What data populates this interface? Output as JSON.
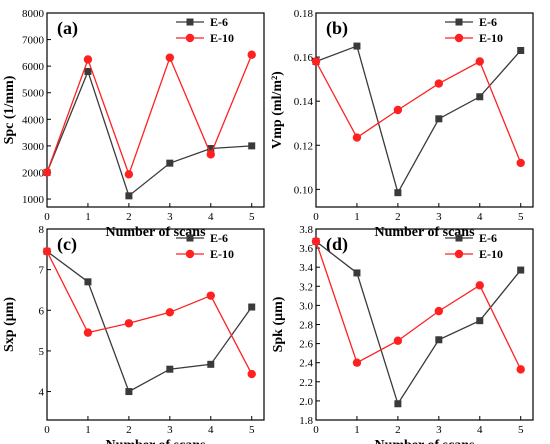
{
  "colors": {
    "E-6": "#3a3a3a",
    "E-10": "#ff2020"
  },
  "chart_data": [
    {
      "type": "line",
      "panel": "(a)",
      "xlabel": "Number of scans",
      "ylabel": "Spc (1/mm)",
      "x": [
        0,
        1,
        2,
        3,
        4,
        5
      ],
      "xlim": [
        0,
        5.3
      ],
      "ylim": [
        700,
        8000
      ],
      "xticks": [
        0,
        1,
        2,
        3,
        4,
        5
      ],
      "yticks": [
        1000,
        2000,
        3000,
        4000,
        5000,
        6000,
        7000,
        8000
      ],
      "yticklabels": [
        "1000",
        "2000",
        "3000",
        "4000",
        "5000",
        "6000",
        "7000",
        "8000"
      ],
      "legend_position": "top-right",
      "series": [
        {
          "name": "E-6",
          "marker": "square",
          "values": [
            2000,
            5800,
            1120,
            2350,
            2900,
            3000
          ]
        },
        {
          "name": "E-10",
          "marker": "circle",
          "values": [
            2000,
            6250,
            1930,
            6320,
            2680,
            6430
          ]
        }
      ]
    },
    {
      "type": "line",
      "panel": "(b)",
      "xlabel": "Number of scans",
      "ylabel": "Vmp (ml/m²)",
      "x": [
        0,
        1,
        2,
        3,
        4,
        5
      ],
      "xlim": [
        0,
        5.3
      ],
      "ylim": [
        0.092,
        0.18
      ],
      "xticks": [
        0,
        1,
        2,
        3,
        4,
        5
      ],
      "yticks": [
        0.1,
        0.12,
        0.14,
        0.16,
        0.18
      ],
      "yticklabels": [
        "0.10",
        "0.12",
        "0.14",
        "0.16",
        "0.18"
      ],
      "legend_position": "top-right",
      "series": [
        {
          "name": "E-6",
          "marker": "square",
          "values": [
            0.158,
            0.165,
            0.0985,
            0.132,
            0.142,
            0.163
          ]
        },
        {
          "name": "E-10",
          "marker": "circle",
          "values": [
            0.158,
            0.1235,
            0.136,
            0.148,
            0.158,
            0.112
          ]
        }
      ]
    },
    {
      "type": "line",
      "panel": "(c)",
      "xlabel": "Number of scans",
      "ylabel": "Sxp (μm)",
      "x": [
        0,
        1,
        2,
        3,
        4,
        5
      ],
      "xlim": [
        0,
        5.3
      ],
      "ylim": [
        3.3,
        8
      ],
      "xticks": [
        0,
        1,
        2,
        3,
        4,
        5
      ],
      "yticks": [
        4,
        5,
        6,
        7,
        8
      ],
      "yticklabels": [
        "4",
        "5",
        "6",
        "7",
        "8"
      ],
      "legend_position": "top-right",
      "series": [
        {
          "name": "E-6",
          "marker": "square",
          "values": [
            7.45,
            6.7,
            4.0,
            4.55,
            4.67,
            6.08
          ]
        },
        {
          "name": "E-10",
          "marker": "circle",
          "values": [
            7.45,
            5.45,
            5.68,
            5.95,
            6.36,
            4.43
          ]
        }
      ]
    },
    {
      "type": "line",
      "panel": "(d)",
      "xlabel": "Number of scans",
      "ylabel": "Spk (μm)",
      "x": [
        0,
        1,
        2,
        3,
        4,
        5
      ],
      "xlim": [
        0,
        5.3
      ],
      "ylim": [
        1.8,
        3.8
      ],
      "xticks": [
        0,
        1,
        2,
        3,
        4,
        5
      ],
      "yticks": [
        1.8,
        2.0,
        2.2,
        2.4,
        2.6,
        2.8,
        3.0,
        3.2,
        3.4,
        3.6,
        3.8
      ],
      "yticklabels": [
        "1.8",
        "2.0",
        "2.2",
        "2.4",
        "2.6",
        "2.8",
        "3.0",
        "3.2",
        "3.4",
        "3.6",
        "3.8"
      ],
      "legend_position": "top-right",
      "series": [
        {
          "name": "E-6",
          "marker": "square",
          "values": [
            3.67,
            3.34,
            1.97,
            2.64,
            2.84,
            3.37
          ]
        },
        {
          "name": "E-10",
          "marker": "circle",
          "values": [
            3.67,
            2.4,
            2.63,
            2.94,
            3.21,
            2.33
          ]
        }
      ]
    }
  ]
}
